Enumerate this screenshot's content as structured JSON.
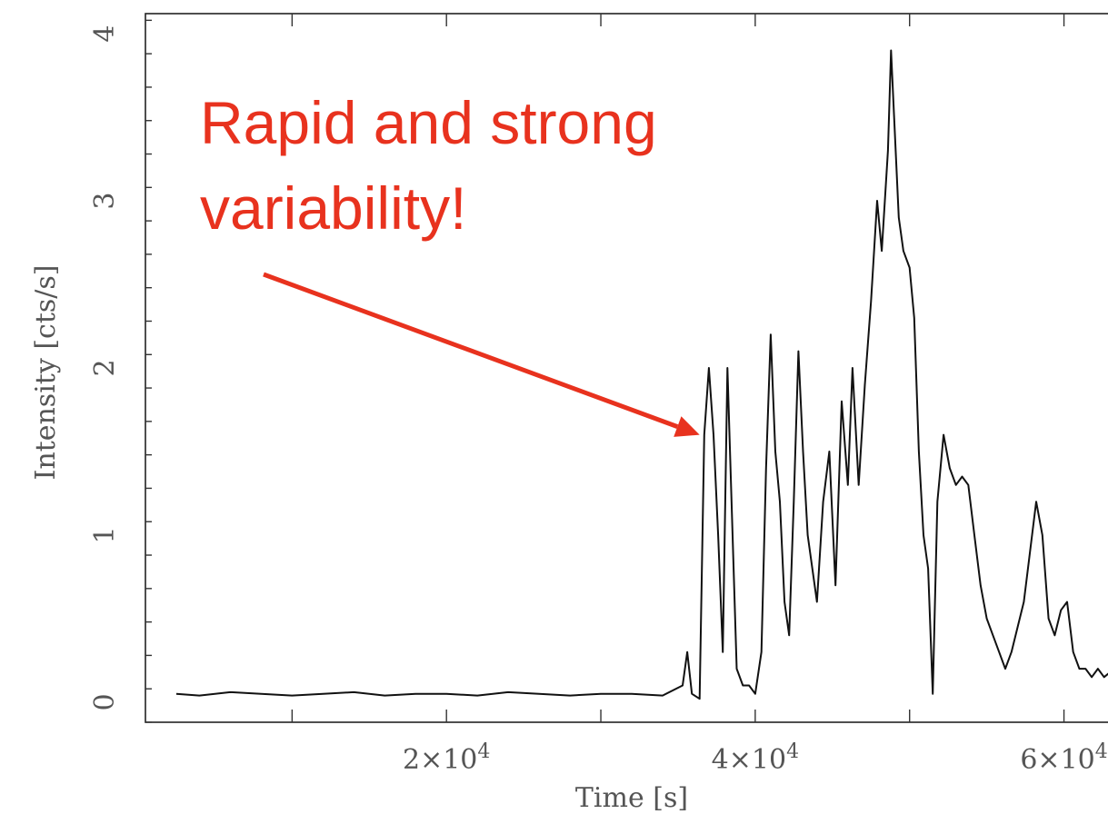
{
  "chart_data": {
    "type": "line",
    "title": "",
    "xlabel": "Time [s]",
    "ylabel": "Intensity [cts/s]",
    "xlim": [
      500,
      63500
    ],
    "ylim": [
      -0.12,
      4.12
    ],
    "x_tick_labels": [
      {
        "value": 20000,
        "base": "2×10",
        "exp": "4"
      },
      {
        "value": 40000,
        "base": "4×10",
        "exp": "4"
      },
      {
        "value": 60000,
        "base": "6×10",
        "exp": "4"
      }
    ],
    "y_tick_labels": [
      {
        "value": 0,
        "label": "0"
      },
      {
        "value": 1,
        "label": "1"
      },
      {
        "value": 2,
        "label": "2"
      },
      {
        "value": 3,
        "label": "3"
      },
      {
        "value": 4,
        "label": "4"
      }
    ],
    "grid": false,
    "series": [
      {
        "color": "#111111",
        "x": [
          2500,
          4000,
          6000,
          8000,
          10000,
          12000,
          14000,
          16000,
          18000,
          20000,
          22000,
          24000,
          26000,
          28000,
          30000,
          32000,
          34000,
          35300,
          35600,
          35900,
          36400,
          36700,
          37000,
          37300,
          37600,
          37900,
          38200,
          38500,
          38800,
          39200,
          39600,
          40000,
          40400,
          40700,
          41000,
          41300,
          41600,
          41900,
          42200,
          42500,
          42800,
          43100,
          43400,
          43700,
          44000,
          44400,
          44800,
          45200,
          45600,
          46000,
          46300,
          46700,
          47100,
          47500,
          47900,
          48200,
          48600,
          48800,
          49000,
          49300,
          49600,
          50000,
          50300,
          50600,
          50900,
          51200,
          51500,
          51800,
          52200,
          52600,
          53000,
          53400,
          53800,
          54200,
          54600,
          55000,
          55400,
          55800,
          56200,
          56600,
          57000,
          57400,
          57800,
          58200,
          58600,
          59000,
          59400,
          59800,
          60200,
          60600,
          61000,
          61400,
          61800,
          62200,
          62600,
          63000
        ],
        "y": [
          0.05,
          0.04,
          0.06,
          0.05,
          0.04,
          0.05,
          0.06,
          0.04,
          0.05,
          0.05,
          0.04,
          0.06,
          0.05,
          0.04,
          0.05,
          0.05,
          0.04,
          0.1,
          0.3,
          0.05,
          0.02,
          1.6,
          2.0,
          1.6,
          1.0,
          0.3,
          2.0,
          1.1,
          0.2,
          0.1,
          0.1,
          0.05,
          0.3,
          1.4,
          2.2,
          1.5,
          1.2,
          0.6,
          0.4,
          1.2,
          2.1,
          1.5,
          1.0,
          0.8,
          0.6,
          1.2,
          1.5,
          0.7,
          1.8,
          1.3,
          2.0,
          1.3,
          1.9,
          2.4,
          3.0,
          2.7,
          3.3,
          3.9,
          3.5,
          2.9,
          2.7,
          2.6,
          2.3,
          1.5,
          1.0,
          0.8,
          0.05,
          1.2,
          1.6,
          1.4,
          1.3,
          1.35,
          1.3,
          1.0,
          0.7,
          0.5,
          0.4,
          0.3,
          0.2,
          0.3,
          0.45,
          0.6,
          0.9,
          1.2,
          1.0,
          0.5,
          0.4,
          0.55,
          0.6,
          0.3,
          0.2,
          0.2,
          0.15,
          0.2,
          0.15,
          0.18
        ]
      }
    ],
    "annotation": {
      "lines": [
        "Rapid and strong",
        "variability!"
      ],
      "color": "#e8321e",
      "arrow_target": {
        "x": 36400,
        "y": 1.6
      }
    }
  }
}
